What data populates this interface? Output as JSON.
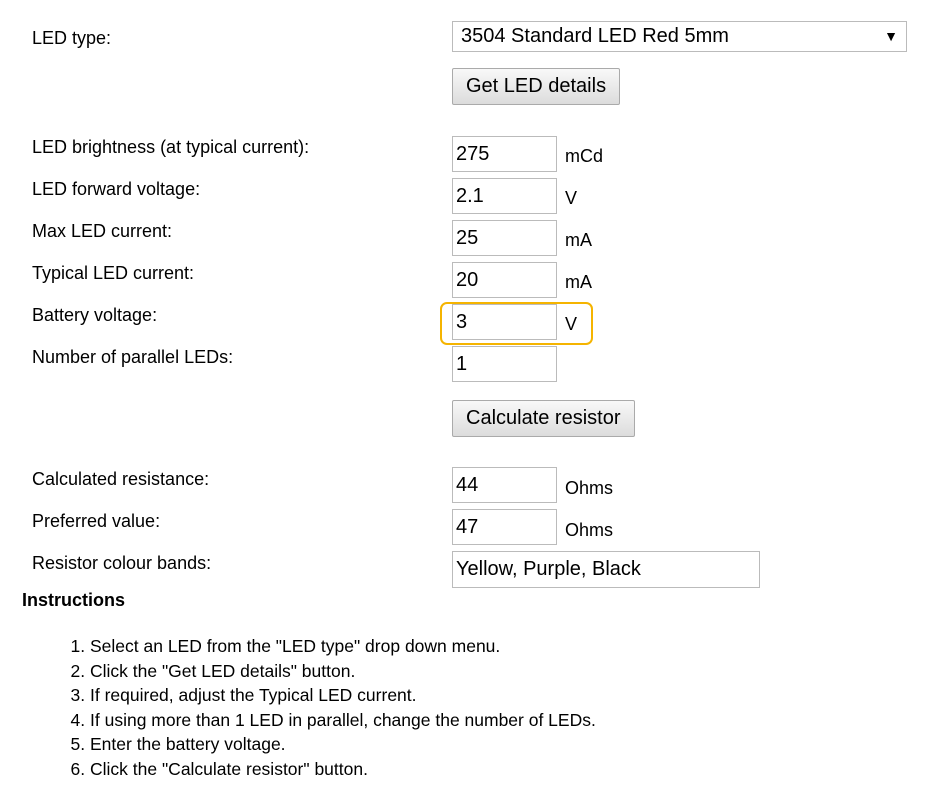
{
  "led_type": {
    "label": "LED type:",
    "selected": "3504 Standard LED Red 5mm",
    "arrow_icon": "triangle-down-icon"
  },
  "get_details_label": "Get LED details",
  "fields": [
    {
      "label": "LED brightness (at typical current):",
      "value": "275",
      "unit": "mCd"
    },
    {
      "label": "LED forward voltage:",
      "value": "2.1",
      "unit": "V"
    },
    {
      "label": "Max LED current:",
      "value": "25",
      "unit": "mA"
    },
    {
      "label": "Typical LED current:",
      "value": "20",
      "unit": "mA"
    },
    {
      "label": "Battery voltage:",
      "value": "3",
      "unit": "V"
    },
    {
      "label": "Number of parallel LEDs:",
      "value": "1",
      "unit": ""
    }
  ],
  "highlight_color": "#f5b400",
  "calculate_label": "Calculate resistor",
  "results": [
    {
      "label": "Calculated resistance:",
      "value": "44",
      "unit": "Ohms"
    },
    {
      "label": "Preferred value:",
      "value": "47",
      "unit": "Ohms"
    },
    {
      "label": "Resistor colour bands:",
      "value": "Yellow, Purple, Black"
    }
  ],
  "instructions": {
    "title": "Instructions",
    "steps": [
      "Select an LED from the \"LED type\" drop down menu.",
      "Click the \"Get LED details\" button.",
      "If required, adjust the Typical LED current.",
      "If using more than 1 LED in parallel, change the number of LEDs.",
      "Enter the battery voltage.",
      "Click the \"Calculate resistor\" button."
    ]
  }
}
